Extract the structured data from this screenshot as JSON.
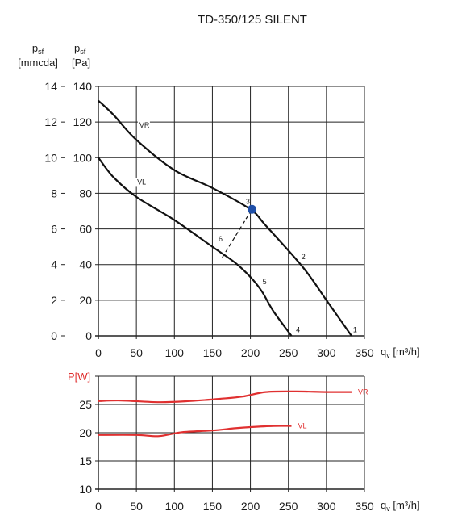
{
  "colors": {
    "pressure_curve": "#111111",
    "power_curve": "#e03030",
    "operating_point": "#1f4fa8",
    "grid": "#222222"
  },
  "chart_data": [
    {
      "type": "line",
      "title": "TD-350/125 SILENT",
      "xlabel": {
        "base": "q",
        "sub": "v",
        "unit": " [m³/h]"
      },
      "ylabel_left": {
        "base": "p",
        "sub": "sf",
        "unit": "[mmcda]"
      },
      "ylabel_right": {
        "base": "p",
        "sub": "sf",
        "unit": "[Pa]"
      },
      "xlim": [
        0,
        350
      ],
      "ylim": [
        0,
        140
      ],
      "x_ticks": [
        0,
        50,
        100,
        150,
        200,
        250,
        300,
        350
      ],
      "x_tick_labels": [
        "0",
        "50",
        "100",
        "150",
        "200",
        "250",
        "300",
        "350"
      ],
      "y_ticks_pa": [
        0,
        20,
        40,
        60,
        80,
        100,
        120,
        140
      ],
      "y_tick_labels_pa": [
        "0",
        "20",
        "40",
        "60",
        "80",
        "100",
        "120",
        "140"
      ],
      "y_ticks_mmcda": [
        0,
        2,
        4,
        6,
        8,
        10,
        12,
        14
      ],
      "y_tick_labels_mmcda": [
        "0",
        "2",
        "4",
        "6",
        "8",
        "10",
        "12",
        "14"
      ],
      "grid": true,
      "series": [
        {
          "name": "VR",
          "x": [
            0,
            20,
            50,
            100,
            150,
            200,
            220,
            270,
            300,
            333
          ],
          "y": [
            132,
            124,
            110,
            93,
            83,
            71,
            62,
            38,
            20,
            0
          ]
        },
        {
          "name": "VL",
          "x": [
            0,
            20,
            50,
            100,
            150,
            180,
            200,
            215,
            230,
            254
          ],
          "y": [
            100,
            89,
            78,
            65,
            50,
            41,
            33,
            25,
            14,
            0
          ]
        }
      ],
      "reference_line": {
        "x": [
          163,
          202
        ],
        "y": [
          44,
          71
        ]
      },
      "operating_point": {
        "x": 202,
        "y": 71
      },
      "point_labels": [
        {
          "text": "1",
          "x": 335,
          "y": 2
        },
        {
          "text": "2",
          "x": 267,
          "y": 43
        },
        {
          "text": "3",
          "x": 194,
          "y": 74
        },
        {
          "text": "4",
          "x": 260,
          "y": 2
        },
        {
          "text": "5",
          "x": 216,
          "y": 29
        },
        {
          "text": "6",
          "x": 158,
          "y": 53
        }
      ],
      "curve_labels": [
        {
          "text": "VR",
          "x": 54,
          "y": 117
        },
        {
          "text": "VL",
          "x": 51,
          "y": 85
        }
      ]
    },
    {
      "type": "line",
      "title": "",
      "ylabel": "P[W]",
      "xlabel": {
        "base": "q",
        "sub": "v",
        "unit": " [m³/h]"
      },
      "xlim": [
        0,
        350
      ],
      "ylim": [
        10,
        30
      ],
      "x_ticks": [
        0,
        50,
        100,
        150,
        200,
        250,
        300,
        350
      ],
      "x_tick_labels": [
        "0",
        "50",
        "100",
        "150",
        "200",
        "250",
        "300",
        "350"
      ],
      "y_ticks": [
        10,
        15,
        20,
        25
      ],
      "y_tick_labels": [
        "10",
        "15",
        "20",
        "25"
      ],
      "grid": true,
      "series": [
        {
          "name": "VR",
          "x": [
            0,
            30,
            80,
            120,
            160,
            190,
            220,
            260,
            300,
            333
          ],
          "y": [
            25.6,
            25.7,
            25.4,
            25.6,
            26.0,
            26.4,
            27.2,
            27.3,
            27.2,
            27.2
          ]
        },
        {
          "name": "VL",
          "x": [
            0,
            50,
            80,
            110,
            150,
            180,
            200,
            230,
            254
          ],
          "y": [
            19.6,
            19.6,
            19.4,
            20.1,
            20.4,
            20.8,
            21.0,
            21.2,
            21.2
          ]
        }
      ]
    }
  ]
}
